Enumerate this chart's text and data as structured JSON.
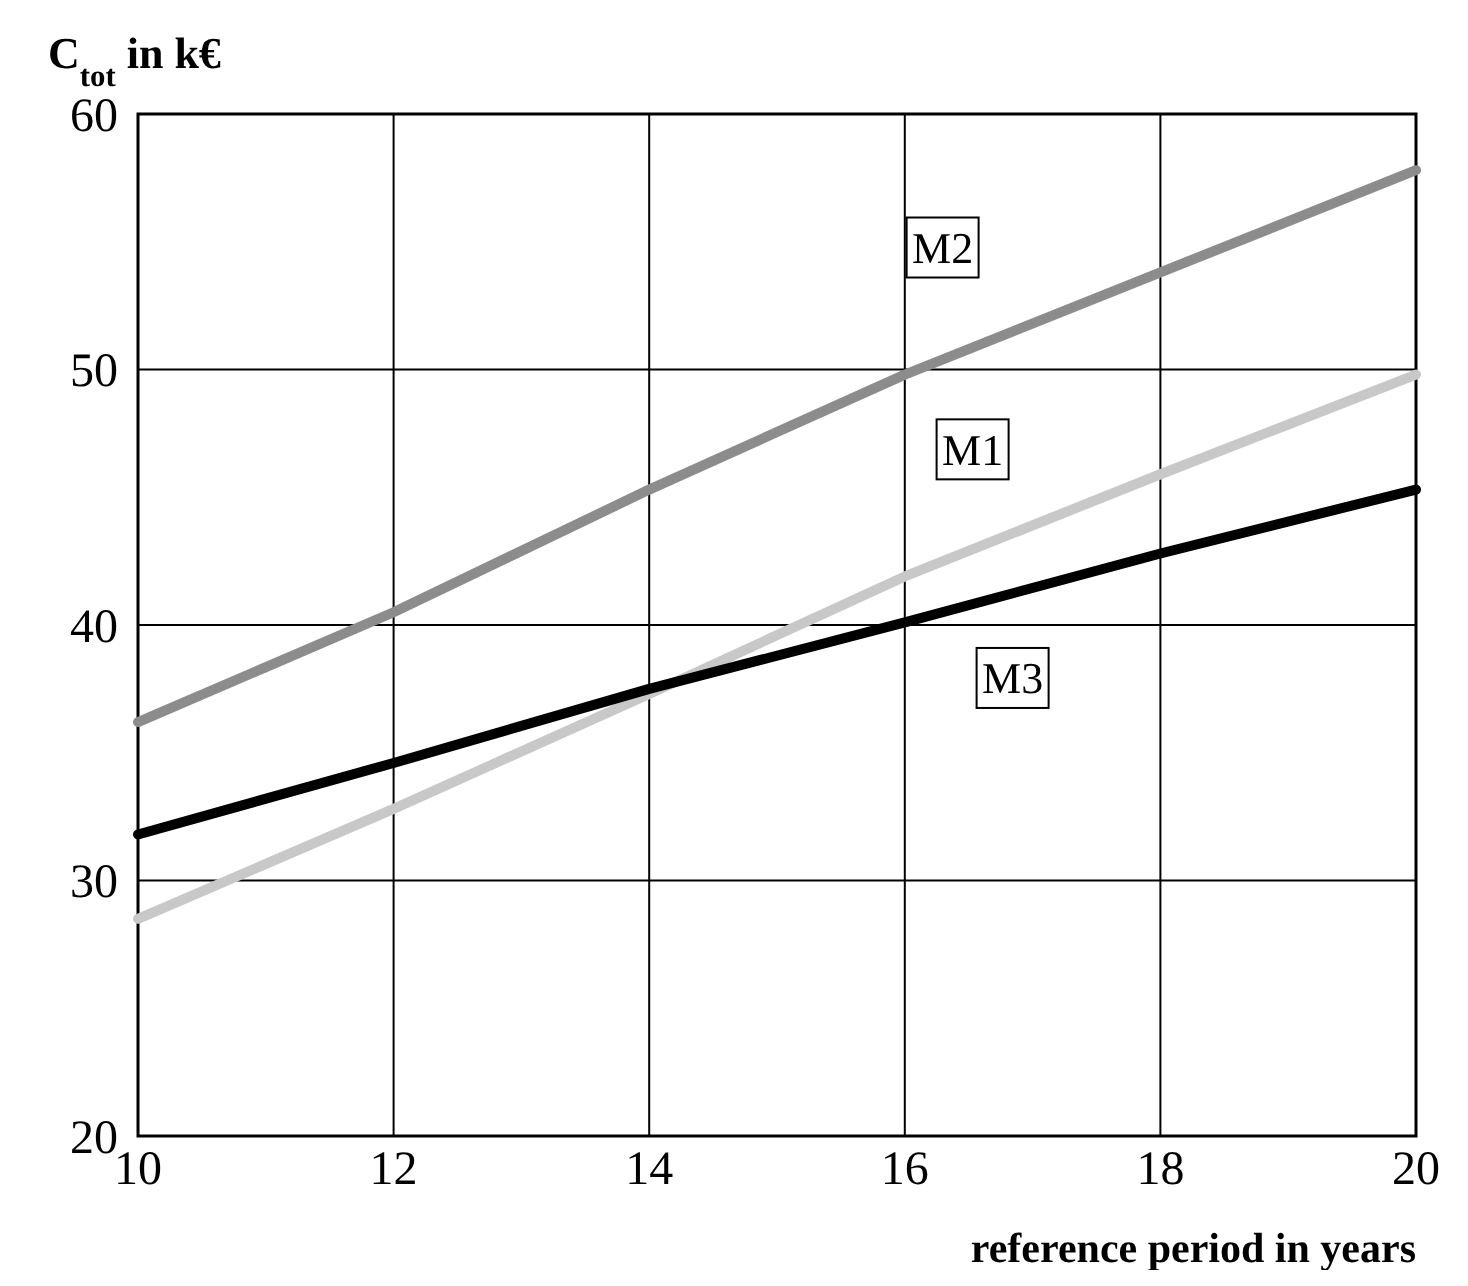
{
  "chart_data": {
    "type": "line",
    "ylabel": "C$_{tot}$ in k€",
    "xlabel": "reference period in years",
    "x": [
      10,
      12,
      14,
      16,
      18,
      20
    ],
    "series": [
      {
        "name": "M2",
        "color": "#8c8c8c",
        "values": [
          36.2,
          40.5,
          45.3,
          49.8,
          53.8,
          57.8
        ]
      },
      {
        "name": "M1",
        "color": "#c8c8c8",
        "values": [
          28.5,
          32.8,
          37.3,
          41.9,
          45.9,
          49.8
        ]
      },
      {
        "name": "M3",
        "color": "#000000",
        "values": [
          31.8,
          34.6,
          37.5,
          40.1,
          42.8,
          45.3
        ]
      }
    ],
    "xlim": [
      10,
      20
    ],
    "xticks": [
      10,
      12,
      14,
      16,
      18,
      20
    ],
    "ylim": [
      20,
      60
    ],
    "yticks": [
      20,
      30,
      40,
      50,
      60
    ],
    "grid": true,
    "line_style": "solid"
  }
}
